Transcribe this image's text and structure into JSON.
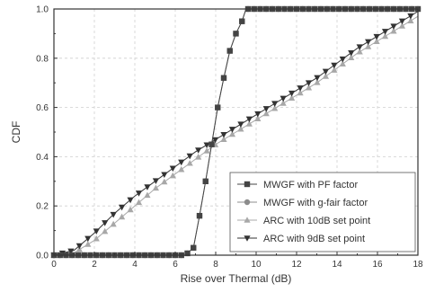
{
  "chart_data": {
    "type": "line",
    "title": "",
    "xlabel": "Rise over Thermal (dB)",
    "ylabel": "CDF",
    "xlim": [
      0,
      18
    ],
    "ylim": [
      0,
      1.0
    ],
    "xticks": [
      "0",
      "2",
      "4",
      "6",
      "8",
      "10",
      "12",
      "14",
      "16",
      "18"
    ],
    "yticks": [
      "0.0",
      "0.2",
      "0.4",
      "0.6",
      "0.8",
      "1.0"
    ],
    "grid": true,
    "legend_position": "bottom-right",
    "series": [
      {
        "name": "MWGF with PF factor",
        "marker": "square",
        "color": "#444444",
        "x": [
          0,
          6.5,
          6.9,
          7.2,
          7.5,
          7.8,
          8.1,
          8.4,
          8.7,
          9.0,
          9.3,
          9.5,
          18
        ],
        "y": [
          0.0,
          0.0,
          0.03,
          0.16,
          0.3,
          0.45,
          0.6,
          0.72,
          0.83,
          0.9,
          0.95,
          1.0,
          1.0
        ]
      },
      {
        "name": "MWGF with g-fair factor",
        "marker": "circle",
        "color": "#8c8c8c",
        "x": [
          0,
          6.5,
          6.9,
          7.2,
          7.5,
          7.8,
          8.1,
          8.4,
          8.7,
          9.0,
          9.3,
          9.5,
          18
        ],
        "y": [
          0.0,
          0.0,
          0.03,
          0.16,
          0.3,
          0.45,
          0.6,
          0.72,
          0.83,
          0.9,
          0.95,
          1.0,
          1.0
        ]
      },
      {
        "name": "ARC with 10dB set point",
        "marker": "triangle-up",
        "color": "#a8a8a8",
        "x": [
          0,
          1,
          2,
          3,
          4,
          5,
          6,
          7,
          8,
          9,
          10,
          11,
          12,
          13,
          14,
          15,
          16,
          17,
          18
        ],
        "y": [
          0.0,
          0.01,
          0.06,
          0.13,
          0.2,
          0.27,
          0.33,
          0.39,
          0.45,
          0.5,
          0.55,
          0.6,
          0.65,
          0.7,
          0.76,
          0.82,
          0.87,
          0.92,
          0.97
        ]
      },
      {
        "name": "ARC with 9dB set point",
        "marker": "triangle-down",
        "color": "#333333",
        "x": [
          0,
          1,
          2,
          3,
          4,
          5,
          6,
          7,
          8,
          9,
          10,
          11,
          12,
          13,
          14,
          15,
          16,
          17,
          18
        ],
        "y": [
          0.0,
          0.02,
          0.09,
          0.17,
          0.24,
          0.3,
          0.36,
          0.42,
          0.47,
          0.52,
          0.57,
          0.62,
          0.67,
          0.72,
          0.78,
          0.84,
          0.89,
          0.94,
          0.99
        ]
      }
    ]
  }
}
